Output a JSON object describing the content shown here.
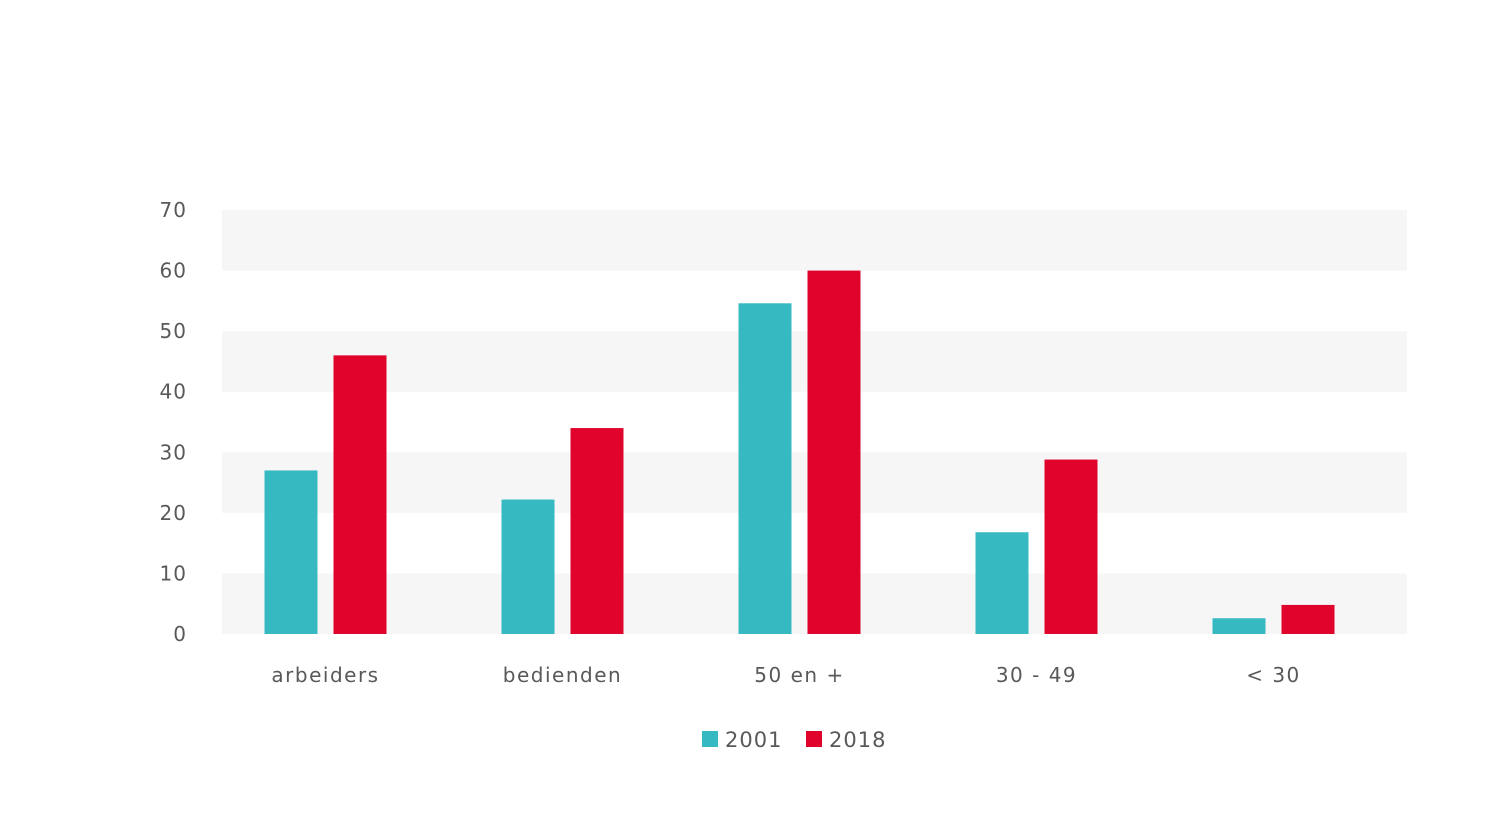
{
  "chart_data": {
    "type": "bar",
    "title": "",
    "xlabel": "",
    "ylabel": "",
    "categories": [
      "arbeiders",
      "bedienden",
      "50 en +",
      "30 - 49",
      "< 30"
    ],
    "series": [
      {
        "name": "2001",
        "color": "#36b9c1",
        "values": [
          27,
          22.2,
          54.6,
          16.8,
          2.6
        ]
      },
      {
        "name": "2018",
        "color": "#e0042c",
        "values": [
          46,
          34,
          60,
          28.8,
          4.8
        ]
      }
    ],
    "ylim": [
      0,
      70
    ],
    "yticks": [
      0,
      10,
      20,
      30,
      40,
      50,
      60,
      70
    ],
    "band_color": "#f6f6f6",
    "grid": "alternating-bands",
    "legend": "bottom-center"
  }
}
